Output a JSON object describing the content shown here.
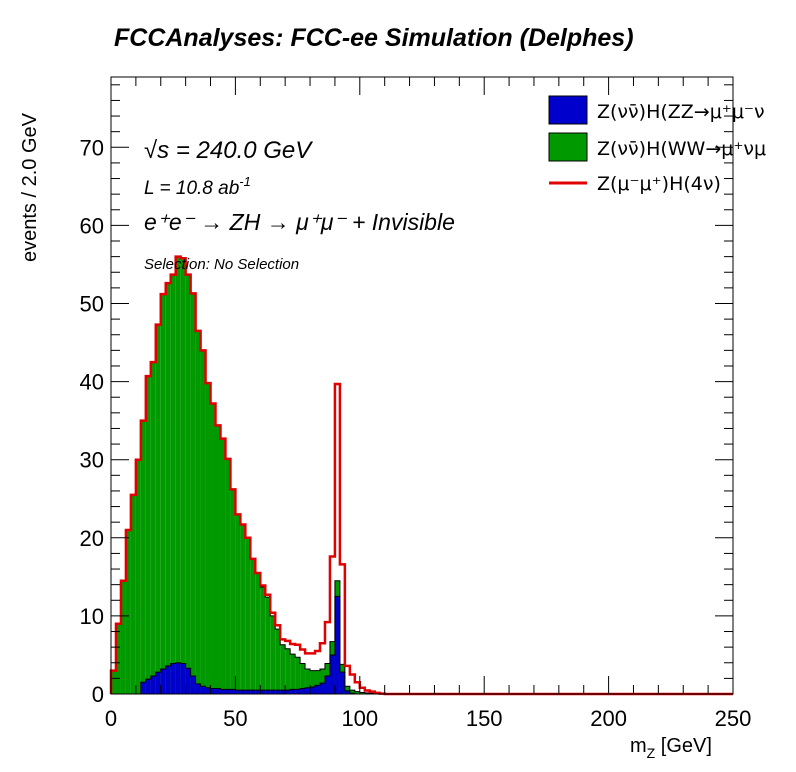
{
  "chart_data": {
    "type": "histogram",
    "title": "FCCAnalyses: FCC-ee Simulation (Delphes)",
    "xlabel": "m_Z [GeV]",
    "ylabel": "events / 2.0 GeV",
    "xlim": [
      0,
      250
    ],
    "ylim": [
      0,
      79
    ],
    "bin_width": 2.0,
    "x_ticks": [
      "0",
      "50",
      "100",
      "150",
      "200",
      "250"
    ],
    "y_ticks": [
      "0",
      "10",
      "20",
      "30",
      "40",
      "50",
      "60",
      "70"
    ],
    "annotations": {
      "sqrt_s": "√s = 240.0 GeV",
      "lumi": "L = 10.8 ab",
      "lumi_exp": "-1",
      "process": "e⁺e⁻ → ZH → μ⁺μ⁻ + Invisible",
      "selection": "Selection: No Selection"
    },
    "legend_position": "top-right",
    "series": [
      {
        "name": "Z(νν̄)H(ZZ→μ⁺μ⁻νν̄)",
        "legend_label": "Z(νν̄)H(ZZ→μ⁺μ⁻ν",
        "style": "filled-stack",
        "color": "#0000cc",
        "x_bin_low": [
          12,
          14,
          16,
          18,
          20,
          22,
          24,
          26,
          28,
          30,
          32,
          34,
          36,
          38,
          40,
          42,
          44,
          46,
          48,
          50,
          52,
          54,
          56,
          58,
          60,
          62,
          64,
          66,
          68,
          70,
          72,
          74,
          76,
          78,
          80,
          82,
          84,
          86,
          88,
          90,
          92,
          94,
          96,
          98
        ],
        "values": [
          1.5,
          1.9,
          2.3,
          2.8,
          3.2,
          3.6,
          3.9,
          4.0,
          3.9,
          3.3,
          2.3,
          1.3,
          1.0,
          0.8,
          0.7,
          0.7,
          0.6,
          0.6,
          0.6,
          0.5,
          0.5,
          0.5,
          0.5,
          0.5,
          0.5,
          0.5,
          0.5,
          0.5,
          0.5,
          0.5,
          0.6,
          0.6,
          0.7,
          0.8,
          0.9,
          1.1,
          1.4,
          2.3,
          5.0,
          12.5,
          2.8,
          0.4,
          0.1,
          0.0
        ]
      },
      {
        "name": "Z(νν̄)H(WW→μ⁺νμ⁻ν̄)",
        "legend_label": "Z(νν̄)H(WW→μ⁺νμ",
        "style": "filled-stack",
        "color": "#009900",
        "x_bin_low": [
          0,
          2,
          4,
          6,
          8,
          10,
          12,
          14,
          16,
          18,
          20,
          22,
          24,
          26,
          28,
          30,
          32,
          34,
          36,
          38,
          40,
          42,
          44,
          46,
          48,
          50,
          52,
          54,
          56,
          58,
          60,
          62,
          64,
          66,
          68,
          70,
          72,
          74,
          76,
          78,
          80,
          82,
          84,
          86,
          88,
          90,
          92,
          94,
          96,
          98,
          100,
          102,
          104,
          106
        ],
        "values": [
          3.0,
          9.0,
          14.5,
          21.0,
          25.5,
          30.0,
          33.5,
          38.8,
          40.2,
          44.5,
          48.0,
          49.0,
          49.8,
          52.0,
          51.9,
          50.4,
          49.0,
          45.2,
          43.0,
          39.0,
          36.5,
          33.7,
          32.1,
          29.5,
          25.6,
          22.5,
          21.2,
          19.5,
          16.8,
          15.0,
          13.2,
          11.9,
          9.5,
          7.8,
          5.8,
          5.3,
          4.5,
          4.1,
          3.2,
          2.4,
          2.1,
          1.9,
          1.8,
          1.6,
          1.7,
          2.0,
          1.0,
          0.6,
          0.4,
          0.3,
          0.2,
          0.15,
          0.1,
          0.05
        ]
      },
      {
        "name": "Z(μ⁻μ⁺)H(4ν)",
        "legend_label": "Z(μ⁻μ⁺)H(4ν)",
        "style": "line-on-stack",
        "color": "#e00000",
        "x_bin_low": [
          60,
          62,
          64,
          66,
          68,
          70,
          72,
          74,
          76,
          78,
          80,
          82,
          84,
          86,
          88,
          90,
          92,
          94,
          96,
          98,
          100,
          102,
          104,
          106,
          108
        ],
        "values": [
          0.2,
          0.3,
          0.4,
          0.5,
          0.7,
          1.0,
          1.3,
          1.6,
          1.8,
          2.0,
          2.2,
          2.5,
          3.3,
          5.3,
          10.9,
          25.2,
          12.8,
          2.6,
          2.0,
          1.2,
          0.6,
          0.3,
          0.2,
          0.1,
          0.05
        ]
      }
    ]
  }
}
